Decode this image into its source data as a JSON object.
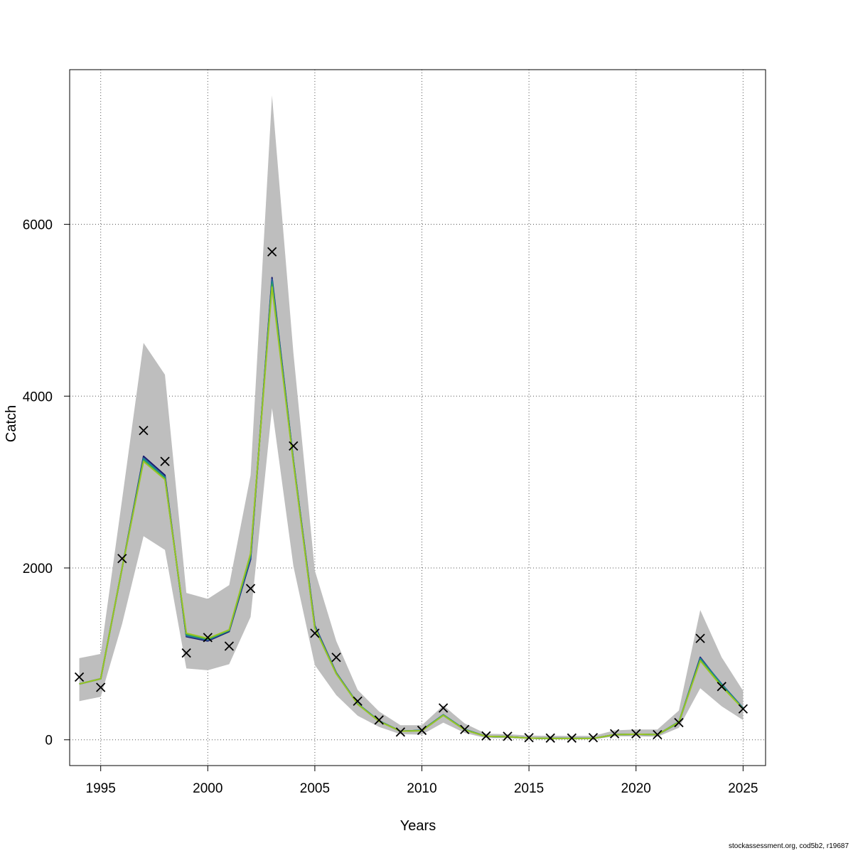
{
  "chart_data": {
    "type": "line",
    "xlabel": "Years",
    "ylabel": "Catch",
    "xlim": [
      1993.55,
      2026.05
    ],
    "ylim": [
      -300,
      7800
    ],
    "x_ticks": [
      1995,
      2000,
      2005,
      2010,
      2015,
      2020,
      2025
    ],
    "y_ticks": [
      0,
      2000,
      4000,
      6000
    ],
    "grid": true,
    "band_color": "#bebebe",
    "years": [
      1994,
      1995,
      1996,
      1997,
      1998,
      1999,
      2000,
      2001,
      2002,
      2003,
      2004,
      2005,
      2006,
      2007,
      2008,
      2009,
      2010,
      2011,
      2012,
      2013,
      2014,
      2015,
      2016,
      2017,
      2018,
      2019,
      2020,
      2021,
      2022,
      2023,
      2024,
      2025
    ],
    "band_upper": [
      950,
      1000,
      2800,
      4620,
      4250,
      1710,
      1640,
      1800,
      3080,
      7500,
      4500,
      1970,
      1150,
      580,
      330,
      170,
      170,
      400,
      190,
      70,
      65,
      50,
      45,
      45,
      45,
      110,
      120,
      120,
      340,
      1510,
      960,
      570
    ],
    "band_lower": [
      450,
      500,
      1350,
      2370,
      2210,
      830,
      810,
      880,
      1430,
      3860,
      2020,
      870,
      520,
      280,
      150,
      65,
      60,
      200,
      80,
      20,
      20,
      10,
      5,
      5,
      5,
      40,
      40,
      35,
      140,
      600,
      390,
      230
    ],
    "series": [
      {
        "color": "#1a1a6e",
        "values": [
          650,
          710,
          2000,
          3300,
          3080,
          1200,
          1150,
          1260,
          2100,
          5380,
          3250,
          1330,
          780,
          420,
          220,
          100,
          110,
          290,
          120,
          40,
          35,
          20,
          15,
          15,
          15,
          60,
          65,
          60,
          200,
          960,
          640,
          370
        ]
      },
      {
        "color": "#2d5fa0",
        "values": [
          650,
          710,
          2000,
          3280,
          3060,
          1210,
          1160,
          1270,
          2120,
          5360,
          3250,
          1320,
          780,
          420,
          220,
          100,
          110,
          290,
          120,
          40,
          35,
          20,
          15,
          15,
          15,
          60,
          65,
          60,
          200,
          950,
          650,
          370
        ]
      },
      {
        "color": "#1b8f8a",
        "values": [
          650,
          710,
          2000,
          3270,
          3050,
          1220,
          1170,
          1270,
          2140,
          5330,
          3240,
          1310,
          775,
          420,
          220,
          100,
          110,
          290,
          120,
          40,
          35,
          20,
          15,
          15,
          15,
          60,
          65,
          60,
          210,
          940,
          640,
          365
        ]
      },
      {
        "color": "#32a852",
        "values": [
          650,
          710,
          2000,
          3250,
          3040,
          1230,
          1170,
          1280,
          2160,
          5300,
          3230,
          1300,
          770,
          415,
          215,
          100,
          105,
          285,
          115,
          40,
          35,
          20,
          15,
          15,
          15,
          60,
          65,
          60,
          200,
          930,
          630,
          360
        ]
      },
      {
        "color": "#9ac424",
        "values": [
          650,
          710,
          2000,
          3240,
          3030,
          1240,
          1180,
          1280,
          2170,
          5270,
          3220,
          1300,
          770,
          415,
          215,
          100,
          105,
          285,
          115,
          40,
          35,
          20,
          15,
          15,
          15,
          60,
          65,
          60,
          205,
          920,
          620,
          360
        ]
      }
    ],
    "observed": {
      "marker": "x",
      "years": [
        1994,
        1995,
        1996,
        1997,
        1998,
        1999,
        2000,
        2001,
        2002,
        2003,
        2004,
        2005,
        2006,
        2007,
        2008,
        2009,
        2010,
        2011,
        2012,
        2013,
        2014,
        2015,
        2016,
        2017,
        2018,
        2019,
        2020,
        2021,
        2022,
        2023,
        2024,
        2025
      ],
      "values": [
        730,
        610,
        2110,
        3600,
        3240,
        1010,
        1190,
        1090,
        1760,
        5680,
        3420,
        1240,
        960,
        450,
        230,
        90,
        110,
        370,
        120,
        45,
        40,
        25,
        20,
        20,
        25,
        70,
        70,
        60,
        200,
        1180,
        620,
        360
      ]
    }
  },
  "footer": "stockassessment.org, cod5b2, r19687"
}
